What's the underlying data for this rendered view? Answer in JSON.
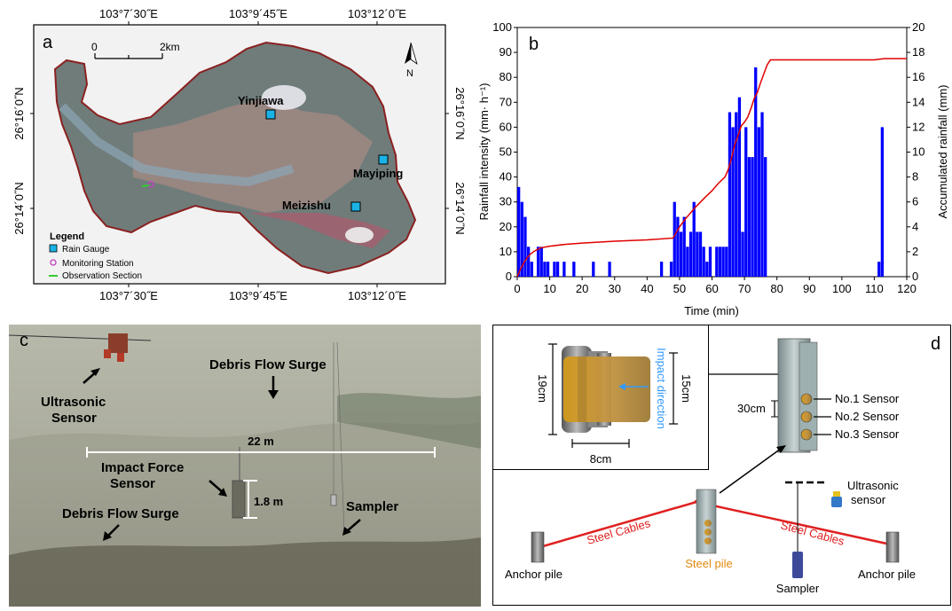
{
  "panel_a": {
    "letter": "a",
    "top_lon_ticks": [
      "103°7´30˝E",
      "103°9´45˝E",
      "103°12´0˝E"
    ],
    "bottom_lon_ticks": [
      "103°7´30˝E",
      "103°9´45˝E",
      "103°12´0˝E"
    ],
    "left_lat_ticks": [
      "26°16´0˝N",
      "26°14´0˝N"
    ],
    "right_lat_ticks": [
      "26°16´0˝N",
      "26°14´0˝N"
    ],
    "scale_zero": "0",
    "scale_end": "2km",
    "north": "N",
    "places": [
      "Yinjiawa",
      "Mayiping",
      "Meizishu"
    ],
    "legend": {
      "title": "Legend",
      "items": [
        "Rain Gauge",
        "Monitoring Station",
        "Observation Section"
      ]
    },
    "colors": {
      "rain_gauge": "#1ab3e6",
      "monitoring_station": "#c040c0",
      "observation_section": "#33cc33",
      "boundary": "#8b2020"
    }
  },
  "panel_b": {
    "letter": "b",
    "chart_data": {
      "type": "bar",
      "xlabel": "Time (min)",
      "ylabel": "Rainfall intensity (mm· h⁻¹)",
      "y2label": "Accumulated rainfall (mm)",
      "xlim": [
        0,
        120
      ],
      "ylim": [
        0,
        100
      ],
      "y2lim": [
        0,
        20
      ],
      "x_ticks": [
        0,
        10,
        20,
        30,
        40,
        50,
        60,
        70,
        80,
        90,
        100,
        110,
        120
      ],
      "y_ticks": [
        0,
        10,
        20,
        30,
        40,
        50,
        60,
        70,
        80,
        90,
        100
      ],
      "y2_ticks": [
        0,
        2,
        4,
        6,
        8,
        10,
        12,
        14,
        16,
        18,
        20
      ],
      "bar_color": "#0000ff",
      "line_color": "#e00000",
      "bars": {
        "x": [
          1,
          2,
          3,
          4,
          5,
          7,
          8,
          9,
          10,
          12,
          13,
          15,
          18,
          24,
          29,
          45,
          48,
          49,
          50,
          51,
          52,
          53,
          54,
          55,
          56,
          57,
          58,
          59,
          60,
          62,
          63,
          64,
          65,
          66,
          67,
          68,
          69,
          70,
          71,
          72,
          73,
          74,
          75,
          76,
          77,
          112,
          113
        ],
        "y": [
          36,
          30,
          24,
          12,
          6,
          12,
          12,
          6,
          6,
          6,
          6,
          6,
          6,
          6,
          6,
          6,
          6,
          30,
          24,
          18,
          24,
          12,
          18,
          30,
          18,
          18,
          12,
          6,
          12,
          12,
          12,
          12,
          12,
          66,
          60,
          66,
          72,
          18,
          60,
          48,
          48,
          84,
          60,
          66,
          48,
          6,
          60
        ]
      },
      "accumulated": {
        "x": [
          0,
          1,
          2,
          3,
          4,
          5,
          7,
          10,
          15,
          20,
          30,
          40,
          48,
          50,
          52,
          55,
          58,
          60,
          62,
          64,
          65,
          66,
          67,
          68,
          69,
          70,
          71,
          72,
          73,
          74,
          75,
          76,
          77,
          78,
          110,
          113,
          120
        ],
        "y": [
          0,
          0.6,
          1.1,
          1.5,
          1.8,
          2.0,
          2.3,
          2.45,
          2.6,
          2.7,
          2.85,
          2.95,
          3.1,
          4.0,
          4.7,
          5.6,
          6.4,
          6.9,
          7.5,
          8.0,
          8.6,
          9.5,
          10.6,
          11.3,
          12.1,
          12.4,
          12.8,
          13.5,
          14.3,
          14.8,
          15.6,
          16.3,
          17.0,
          17.4,
          17.4,
          17.5,
          17.5
        ]
      }
    }
  },
  "panel_c": {
    "letter": "c",
    "labels": {
      "ultrasonic": "Ultrasonic\nSensor",
      "surge_top": "Debris Flow Surge",
      "width": "22 m",
      "impact": "Impact Force\nSensor",
      "height": "1.8 m",
      "surge_bottom": "Debris Flow Surge",
      "sampler": "Sampler"
    }
  },
  "panel_d": {
    "letter": "d",
    "inset": {
      "dim_height_outer": "19cm",
      "dim_height_inner": "15cm",
      "dim_width": "8cm",
      "impact_direction": "Impact direction"
    },
    "sensors": [
      "No.1 Sensor",
      "No.2 Sensor",
      "No.3 Sensor"
    ],
    "spacing": "30cm",
    "labels": {
      "ultrasonic": "Ultrasonic\nsensor",
      "cables_left": "Steel  Cables",
      "cables_right": "Steel  Cables",
      "steel_pile": "Steel pile",
      "anchor_left": "Anchor pile",
      "anchor_right": "Anchor pile",
      "sampler": "Sampler"
    }
  }
}
